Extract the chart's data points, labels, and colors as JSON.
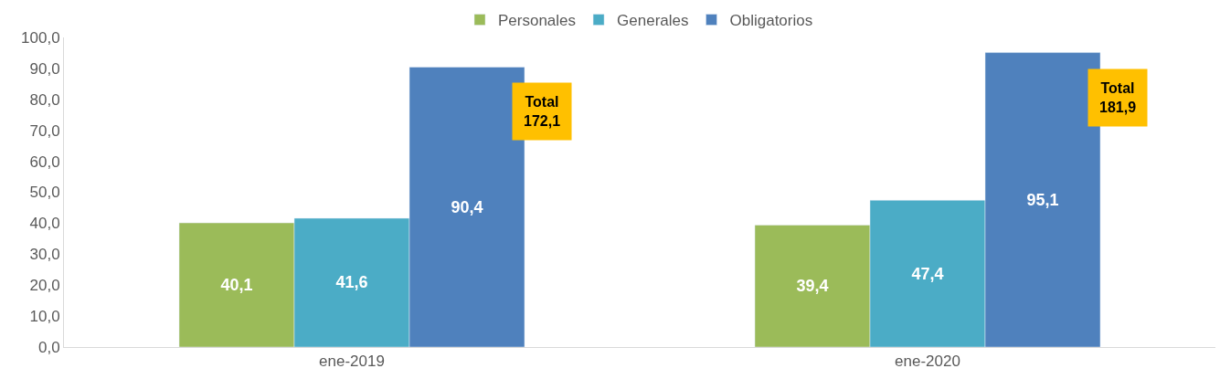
{
  "chart_data": {
    "type": "bar",
    "categories": [
      "ene-2019",
      "ene-2020"
    ],
    "series": [
      {
        "name": "Personales",
        "color": "#9bbb59",
        "values": [
          40.1,
          39.4
        ],
        "value_labels": [
          "40,1",
          "39,4"
        ]
      },
      {
        "name": "Generales",
        "color": "#4bacc6",
        "values": [
          41.6,
          47.4
        ],
        "value_labels": [
          "41,6",
          "47,4"
        ]
      },
      {
        "name": "Obligatorios",
        "color": "#4f81bd",
        "values": [
          90.4,
          95.1
        ],
        "value_labels": [
          "90,4",
          "95,1"
        ]
      }
    ],
    "ylim": [
      0,
      100
    ],
    "yticks": [
      {
        "value": 0,
        "label": "0,0"
      },
      {
        "value": 10,
        "label": "10,0"
      },
      {
        "value": 20,
        "label": "20,0"
      },
      {
        "value": 30,
        "label": "30,0"
      },
      {
        "value": 40,
        "label": "40,0"
      },
      {
        "value": 50,
        "label": "50,0"
      },
      {
        "value": 60,
        "label": "60,0"
      },
      {
        "value": 70,
        "label": "70,0"
      },
      {
        "value": 80,
        "label": "80,0"
      },
      {
        "value": 90,
        "label": "90,0"
      },
      {
        "value": 100,
        "label": "100,0"
      }
    ],
    "annotations": [
      "Total\n172,1",
      "Total\n181,9"
    ],
    "legend": "top"
  }
}
